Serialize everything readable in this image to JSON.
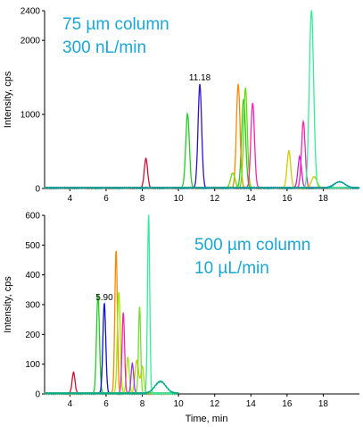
{
  "chart_data": [
    {
      "type": "line",
      "xlabel": "",
      "ylabel": "Intensity, cps",
      "xlim": [
        2.6,
        20.0
      ],
      "ylim": [
        0,
        2400
      ],
      "x_ticks": [
        4,
        6,
        8,
        10,
        12,
        14,
        16,
        18
      ],
      "y_ticks": [
        0,
        1000,
        2000,
        2400
      ],
      "y_tick_labels": [
        "0",
        "1000",
        "2000",
        "2400"
      ],
      "annotation": {
        "text": "75 µm column",
        "text2": "300 nL/min",
        "color": "#1aa6d6"
      },
      "peak_label": {
        "text": "11.18",
        "x": 11.18,
        "y": 1400
      },
      "series": [
        {
          "color": "#cc1133",
          "peaks": [
            [
              8.2,
              400,
              0.09
            ]
          ]
        },
        {
          "color": "#22cc22",
          "peaks": [
            [
              10.5,
              1000,
              0.1
            ],
            [
              13.6,
              1200,
              0.11
            ]
          ]
        },
        {
          "color": "#3311cc",
          "peaks": [
            [
              11.18,
              1400,
              0.1
            ]
          ]
        },
        {
          "color": "#ff8800",
          "peaks": [
            [
              13.3,
              1400,
              0.1
            ]
          ]
        },
        {
          "color": "#66dd00",
          "peaks": [
            [
              13.7,
              1350,
              0.1
            ],
            [
              13.0,
              200,
              0.12
            ]
          ]
        },
        {
          "color": "#ff22aa",
          "peaks": [
            [
              14.1,
              1150,
              0.1
            ],
            [
              16.9,
              900,
              0.1
            ]
          ]
        },
        {
          "color": "#cccc00",
          "peaks": [
            [
              16.1,
              500,
              0.1
            ],
            [
              17.5,
              150,
              0.15
            ]
          ]
        },
        {
          "color": "#cc22cc",
          "peaks": [
            [
              16.7,
              420,
              0.1
            ]
          ]
        },
        {
          "color": "#33ee99",
          "peaks": [
            [
              17.35,
              2400,
              0.12
            ]
          ]
        },
        {
          "color": "#009999",
          "peaks": [
            [
              18.9,
              80,
              0.3
            ]
          ]
        }
      ]
    },
    {
      "type": "line",
      "xlabel": "Time, min",
      "ylabel": "Intensity, cps",
      "xlim": [
        2.6,
        20.0
      ],
      "ylim": [
        0,
        600
      ],
      "x_ticks": [
        4,
        6,
        8,
        10,
        12,
        14,
        16,
        18
      ],
      "y_ticks": [
        0,
        100,
        200,
        300,
        400,
        500,
        600
      ],
      "y_tick_labels": [
        "0",
        "100",
        "200",
        "300",
        "400",
        "500",
        "600"
      ],
      "annotation": {
        "text": "500 µm column",
        "text2": "10 µL/min",
        "color": "#1aa6d6"
      },
      "peak_label": {
        "text": "5.90",
        "x": 5.9,
        "y": 300
      },
      "series": [
        {
          "color": "#cc1133",
          "peaks": [
            [
              4.2,
              70,
              0.08
            ]
          ]
        },
        {
          "color": "#22cc22",
          "peaks": [
            [
              5.55,
              330,
              0.08
            ]
          ]
        },
        {
          "color": "#1111cc",
          "peaks": [
            [
              5.9,
              300,
              0.08
            ]
          ]
        },
        {
          "color": "#ff8800",
          "peaks": [
            [
              6.55,
              480,
              0.07
            ]
          ]
        },
        {
          "color": "#99ee00",
          "peaks": [
            [
              6.7,
              340,
              0.08
            ],
            [
              7.2,
              120,
              0.08
            ]
          ]
        },
        {
          "color": "#ff22aa",
          "peaks": [
            [
              6.95,
              270,
              0.07
            ]
          ]
        },
        {
          "color": "#cccc00",
          "peaks": [
            [
              7.7,
              110,
              0.1
            ],
            [
              8.0,
              90,
              0.08
            ]
          ]
        },
        {
          "color": "#9933ff",
          "peaks": [
            [
              7.45,
              100,
              0.07
            ]
          ]
        },
        {
          "color": "#77dd33",
          "peaks": [
            [
              7.85,
              290,
              0.06
            ]
          ]
        },
        {
          "color": "#33ee99",
          "peaks": [
            [
              8.35,
              600,
              0.06
            ]
          ]
        },
        {
          "color": "#00aa88",
          "peaks": [
            [
              9.0,
              40,
              0.3
            ]
          ]
        }
      ]
    }
  ]
}
